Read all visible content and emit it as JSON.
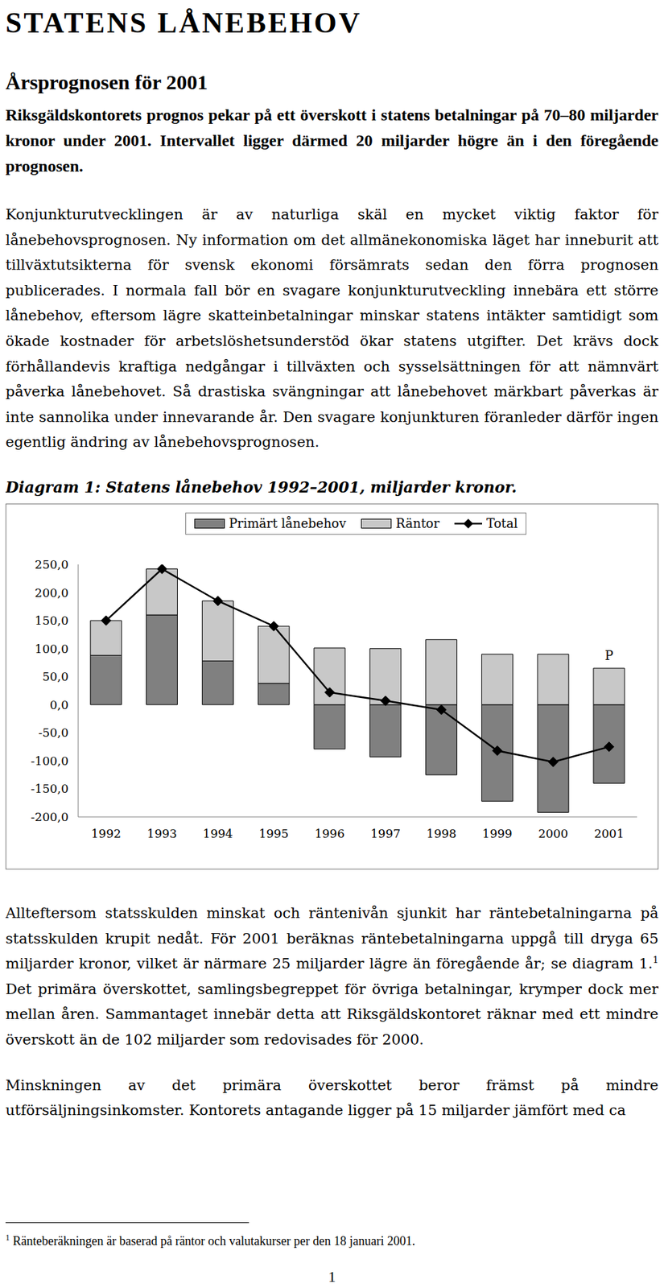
{
  "title": "STATENS LÅNEBEHOV",
  "section": "Årsprognosen för 2001",
  "lead": "Riksgäldskontorets prognos pekar på ett överskott i statens betalningar på 70–80 miljarder kronor under 2001. Intervallet ligger därmed 20 miljarder högre än i den föregående prognosen.",
  "body_1": "Konjunkturutvecklingen är av naturliga skäl en mycket viktig faktor för lånebehovsprognosen. Ny information om det allmänekonomiska läget har inneburit att tillväxtutsikterna för svensk ekonomi försämrats sedan den förra prognosen publicerades. I normala fall bör en svagare konjunkturutveckling innebära ett större lånebehov, eftersom lägre skatteinbetalningar minskar statens intäkter samtidigt som ökade kostnader för arbetslöshetsunderstöd ökar statens utgifter. Det krävs dock förhållandevis kraftiga nedgångar i tillväxten och sysselsättningen för att nämnvärt påverka lånebehovet. Så drastiska svängningar att lånebehovet märkbart påverkas är inte sannolika under innevarande år. Den svagare konjunkturen föranleder därför ingen egentlig ändring av lånebehovsprognosen.",
  "chart_data": {
    "type": "bar",
    "title": "Diagram 1: Statens lånebehov 1992–2001, miljarder kronor.",
    "categories": [
      "1992",
      "1993",
      "1994",
      "1995",
      "1996",
      "1997",
      "1998",
      "1999",
      "2000",
      "2001"
    ],
    "series": [
      {
        "name": "Primärt lånebehov",
        "color": "#808080",
        "values": [
          88,
          160,
          78,
          38,
          -79,
          -93,
          -125,
          -172,
          -192,
          -140
        ]
      },
      {
        "name": "Räntor",
        "color": "#c8c8c8",
        "values": [
          62,
          82,
          107,
          102,
          101,
          100,
          116,
          90,
          90,
          65
        ]
      },
      {
        "name": "Total",
        "type": "line",
        "color": "#000000",
        "marker": "diamond",
        "values": [
          150,
          242,
          185,
          140,
          22,
          7,
          -9,
          -82,
          -102,
          -75
        ]
      }
    ],
    "stacked": true,
    "legend": "top",
    "ylim": [
      -200,
      250
    ],
    "yticks": [
      {
        "value": -200,
        "label": "-200,0"
      },
      {
        "value": -150,
        "label": "-150,0"
      },
      {
        "value": -100,
        "label": "-100,0"
      },
      {
        "value": -50,
        "label": "-50,0"
      },
      {
        "value": 0,
        "label": "0,0"
      },
      {
        "value": 50,
        "label": "50,0"
      },
      {
        "value": 100,
        "label": "100,0"
      },
      {
        "value": 150,
        "label": "150,0"
      },
      {
        "value": 200,
        "label": "200,0"
      },
      {
        "value": 250,
        "label": "250,0"
      }
    ],
    "annotations": [
      {
        "text": "P",
        "category": "2001"
      }
    ]
  },
  "body_2": {
    "before": "Allteftersom statsskulden minskat och räntenivån sjunkit har räntebetalningarna på statsskulden krupit nedåt. För 2001 beräknas räntebetalningarna uppgå till dryga 65 miljarder kronor, vilket är närmare 25 miljarder lägre än föregående år; se diagram 1.",
    "footnote_mark": "1",
    "after": " Det primära överskottet, samlingsbegreppet för övriga betalningar, krymper dock mer mellan åren. Sammantaget innebär detta att Riksgäldskontoret räknar med ett mindre överskott än de 102 miljarder som redovisades för 2000."
  },
  "body_3": "Minskningen av det primära överskottet beror främst på mindre utförsäljningsinkomster. Kontorets antagande ligger på 15 miljarder jämfört med ca",
  "footnote": {
    "mark": "1",
    "text": "Ränteberäkningen är baserad på räntor och valutakurser per den 18 januari 2001."
  },
  "page_number": "1"
}
